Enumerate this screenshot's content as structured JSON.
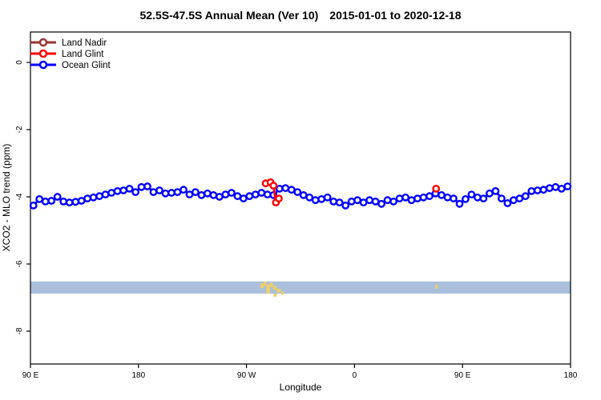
{
  "title_main": "52.5S-47.5S Annual Mean (Ver 10)",
  "title_dates": "2015-01-01 to 2020-12-18",
  "legend": {
    "items": [
      {
        "label": "Land Nadir",
        "color": "#993333"
      },
      {
        "label": "Land Glint",
        "color": "#FF0000"
      },
      {
        "label": "Ocean Glint",
        "color": "#0000FF"
      }
    ]
  },
  "chart_data": {
    "type": "line",
    "title": "52.5S-47.5S Annual Mean (Ver 10)  2015-01-01 to 2020-12-18",
    "xlabel": "Longitude",
    "ylabel": "XCO2 - MLO trend (ppm)",
    "x_range": [
      90,
      540
    ],
    "y_range": [
      0.905,
      -8.976
    ],
    "x_ticks": [
      {
        "pos": 90,
        "label": "90 E"
      },
      {
        "pos": 180,
        "label": "180"
      },
      {
        "pos": 270,
        "label": "90 W"
      },
      {
        "pos": 360,
        "label": "0"
      },
      {
        "pos": 450,
        "label": "90 E"
      },
      {
        "pos": 540,
        "label": "180"
      }
    ],
    "y_ticks": [
      {
        "pos": 0,
        "label": "0"
      },
      {
        "pos": -2,
        "label": "-2"
      },
      {
        "pos": -4,
        "label": "-4"
      },
      {
        "pos": -6,
        "label": "-6"
      },
      {
        "pos": -8,
        "label": "-8"
      }
    ],
    "map_band": {
      "value_top": -6.52,
      "value_bottom": -6.88,
      "ocean_color": "#A9BFDC",
      "land_color": "#EDCF6B"
    },
    "land_patches": [
      {
        "lon": 281.5,
        "lon_end": 284.5,
        "f0": 0.15,
        "f1": 0.55
      },
      {
        "lon": 284.5,
        "lon_end": 286.5,
        "f0": 0.0,
        "f1": 0.35
      },
      {
        "lon": 286.5,
        "lon_end": 289.5,
        "f0": 0.25,
        "f1": 1.0
      },
      {
        "lon": 289.5,
        "lon_end": 292.0,
        "f0": 0.1,
        "f1": 0.45
      },
      {
        "lon": 292.0,
        "lon_end": 295.0,
        "f0": 0.35,
        "f1": 0.7
      },
      {
        "lon": 295.0,
        "lon_end": 298.5,
        "f0": 0.6,
        "f1": 0.9
      },
      {
        "lon": 292.5,
        "lon_end": 295.5,
        "f0": 1.0,
        "f1": 1.25
      },
      {
        "lon": 299.0,
        "lon_end": 301.0,
        "f0": 0.8,
        "f1": 1.1
      },
      {
        "lon": 427.5,
        "lon_end": 429.5,
        "f0": 0.25,
        "f1": 0.6
      }
    ],
    "series": [
      {
        "name": "Land Nadir",
        "color": "#993333",
        "segments": []
      },
      {
        "name": "Land Glint",
        "color": "#FF0000",
        "segments": [
          [
            [
              286.0,
              -3.6
            ],
            [
              290.0,
              -3.57
            ],
            [
              292.5,
              -3.67
            ],
            [
              294.5,
              -4.17
            ],
            [
              297.0,
              -4.05
            ]
          ],
          [
            [
              428.0,
              -3.76
            ]
          ]
        ]
      },
      {
        "name": "Ocean Glint",
        "color": "#0000FF",
        "segments": [
          [
            [
              92.5,
              -4.26
            ],
            [
              97.5,
              -4.07
            ],
            [
              102.5,
              -4.14
            ],
            [
              107.5,
              -4.12
            ],
            [
              112.5,
              -4.0
            ],
            [
              117.5,
              -4.14
            ],
            [
              122.5,
              -4.17
            ],
            [
              127.5,
              -4.15
            ],
            [
              132.5,
              -4.12
            ],
            [
              137.5,
              -4.05
            ],
            [
              142.5,
              -4.02
            ],
            [
              147.5,
              -3.98
            ],
            [
              152.5,
              -3.93
            ],
            [
              157.5,
              -3.88
            ],
            [
              162.5,
              -3.83
            ],
            [
              167.5,
              -3.81
            ],
            [
              172.5,
              -3.76
            ],
            [
              177.5,
              -3.86
            ],
            [
              182.5,
              -3.71
            ],
            [
              187.5,
              -3.69
            ],
            [
              192.5,
              -3.86
            ],
            [
              197.5,
              -3.81
            ],
            [
              202.5,
              -3.9
            ],
            [
              207.5,
              -3.88
            ],
            [
              212.5,
              -3.86
            ],
            [
              217.5,
              -3.79
            ],
            [
              222.5,
              -3.93
            ],
            [
              227.5,
              -3.86
            ],
            [
              232.5,
              -3.95
            ],
            [
              237.5,
              -3.9
            ],
            [
              242.5,
              -3.95
            ],
            [
              247.5,
              -4.0
            ],
            [
              252.5,
              -3.93
            ],
            [
              257.5,
              -3.88
            ],
            [
              262.5,
              -3.98
            ],
            [
              267.5,
              -4.05
            ],
            [
              272.5,
              -3.98
            ],
            [
              277.5,
              -3.93
            ],
            [
              282.5,
              -3.88
            ],
            [
              287.5,
              -3.93
            ],
            [
              292.5,
              -3.95
            ],
            [
              297.5,
              -3.76
            ],
            [
              302.5,
              -3.74
            ],
            [
              307.5,
              -3.79
            ],
            [
              312.5,
              -3.86
            ],
            [
              317.5,
              -3.95
            ],
            [
              322.5,
              -4.02
            ],
            [
              327.5,
              -4.1
            ],
            [
              332.5,
              -4.07
            ],
            [
              337.5,
              -4.02
            ],
            [
              342.5,
              -4.14
            ],
            [
              347.5,
              -4.17
            ],
            [
              352.5,
              -4.26
            ],
            [
              357.5,
              -4.14
            ],
            [
              362.5,
              -4.1
            ],
            [
              367.5,
              -4.17
            ],
            [
              372.5,
              -4.1
            ],
            [
              377.5,
              -4.14
            ],
            [
              382.5,
              -4.21
            ],
            [
              387.5,
              -4.1
            ],
            [
              392.5,
              -4.14
            ],
            [
              397.5,
              -4.05
            ],
            [
              402.5,
              -4.02
            ],
            [
              407.5,
              -4.1
            ],
            [
              412.5,
              -4.05
            ],
            [
              417.5,
              -4.02
            ],
            [
              422.5,
              -3.98
            ],
            [
              427.5,
              -3.9
            ],
            [
              432.5,
              -3.95
            ],
            [
              437.5,
              -4.02
            ],
            [
              442.5,
              -4.05
            ],
            [
              447.5,
              -4.21
            ],
            [
              452.5,
              -4.07
            ],
            [
              457.5,
              -3.93
            ],
            [
              462.5,
              -4.02
            ],
            [
              467.5,
              -4.05
            ],
            [
              472.5,
              -3.9
            ],
            [
              477.5,
              -3.83
            ],
            [
              482.5,
              -4.05
            ],
            [
              487.5,
              -4.19
            ],
            [
              492.5,
              -4.1
            ],
            [
              497.5,
              -4.05
            ],
            [
              502.5,
              -3.98
            ],
            [
              507.5,
              -3.83
            ],
            [
              512.5,
              -3.81
            ],
            [
              517.5,
              -3.79
            ],
            [
              522.5,
              -3.74
            ],
            [
              527.5,
              -3.71
            ],
            [
              532.5,
              -3.76
            ],
            [
              537.5,
              -3.69
            ]
          ]
        ]
      }
    ]
  }
}
